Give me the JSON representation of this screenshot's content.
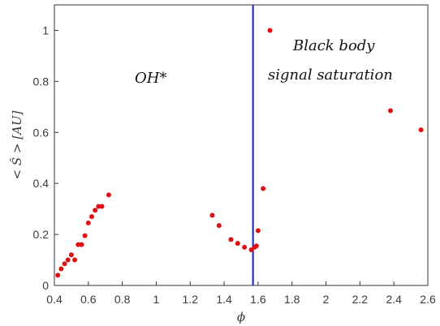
{
  "chart_data": {
    "type": "scatter",
    "xlabel": "ϕ",
    "ylabel": "< Ŝ > [AU]",
    "xlim": [
      0.4,
      2.6
    ],
    "ylim": [
      0,
      1.1
    ],
    "xticks": [
      "0.4",
      "0.6",
      "0.8",
      "1",
      "1.2",
      "1.4",
      "1.6",
      "1.8",
      "2",
      "2.2",
      "2.4",
      "2.6"
    ],
    "yticks": [
      "0",
      "0.2",
      "0.4",
      "0.6",
      "0.8",
      "1"
    ],
    "grid": false,
    "vertical_line_x": 1.57,
    "annotations": {
      "left": "OH*",
      "right_line1": "Black body",
      "right_line2": "signal saturation"
    },
    "series": [
      {
        "color": "#e01010",
        "x": [
          0.42,
          0.44,
          0.46,
          0.48,
          0.5,
          0.52,
          0.54,
          0.56,
          0.58,
          0.6,
          0.62,
          0.64,
          0.66,
          0.68,
          0.72,
          1.33,
          1.37,
          1.44,
          1.48,
          1.52,
          1.56,
          1.58,
          1.59,
          1.6,
          1.63,
          1.67,
          2.38,
          2.56
        ],
        "y": [
          0.04,
          0.065,
          0.085,
          0.1,
          0.12,
          0.1,
          0.16,
          0.16,
          0.195,
          0.245,
          0.27,
          0.295,
          0.31,
          0.31,
          0.355,
          0.275,
          0.235,
          0.18,
          0.165,
          0.15,
          0.14,
          0.15,
          0.155,
          0.215,
          0.38,
          1.0,
          0.685,
          0.61
        ]
      }
    ],
    "line_color": "#2233cc"
  }
}
